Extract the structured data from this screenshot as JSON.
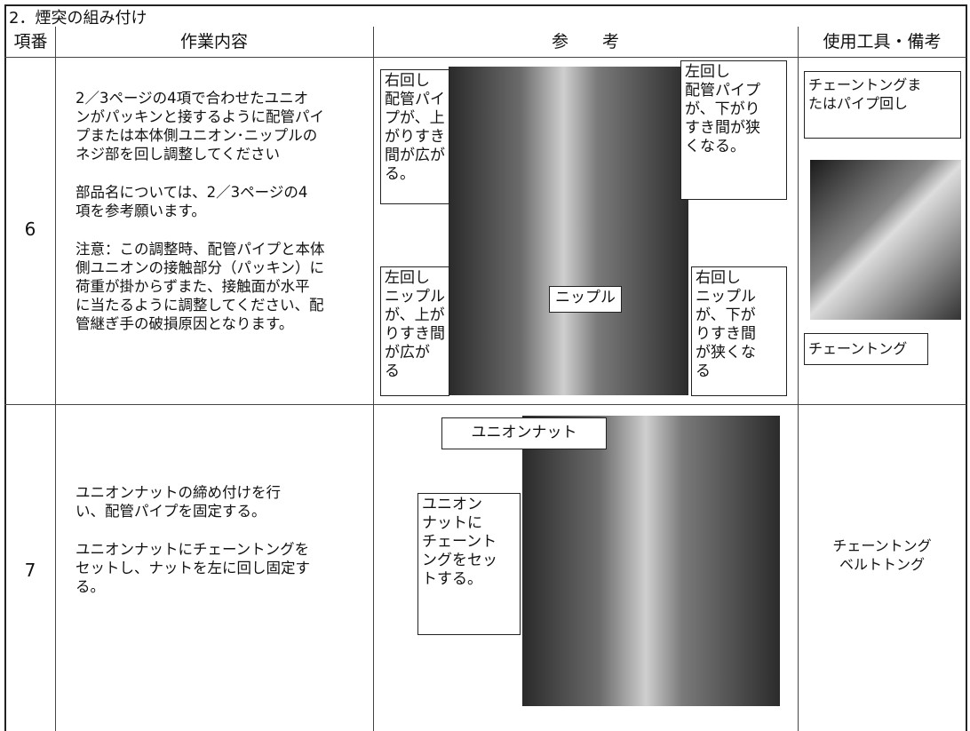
{
  "header": {
    "section": "2．煙突の組み付け"
  },
  "table": {
    "columns": [
      "項番",
      "作業内容",
      "参　　考",
      "使用工具・備考"
    ],
    "rows": [
      {
        "number": "6",
        "content": [
          [
            "2／3ページの4項で合わせたユニオ",
            "ンがパッキンと接するように配管パイ",
            "プまたは本体側ユニオン･ニップルの",
            "ネジ部を回し調整してください"
          ],
          [
            "部品名については、2／3ページの4",
            "項を参考願います。"
          ],
          [
            "注意：この調整時、配管パイプと本体",
            "側ユニオンの接触部分（パッキン）に",
            "荷重が掛からずまた、接触面が水平",
            "に当たるように調整してください、配",
            "管継ぎ手の破損原因となります。"
          ]
        ],
        "callouts": [
          [
            "右回し",
            "配管パイ",
            "プが、上",
            "がりすき",
            "間が広が",
            "る。"
          ],
          [
            "左回し",
            "配管パイプ",
            "が、下がり",
            "すき間が狭",
            "くなる。"
          ],
          [
            "ニップル"
          ],
          [
            "左回し",
            "ニップル",
            "が、上が",
            "りすき間",
            "が広が",
            "る"
          ],
          [
            "右回し",
            "ニップル",
            "が、下が",
            "りすき間",
            "が狭くな",
            "る"
          ]
        ],
        "tools": [
          [
            "チェーントングま",
            "たはパイプ回し"
          ],
          [
            "チェーントング"
          ]
        ]
      },
      {
        "number": "7",
        "content": [
          [
            "ユニオンナットの締め付けを行",
            "い、配管パイプを固定する。"
          ],
          [
            "ユニオンナットにチェーントングを",
            "セットし、ナットを左に回し固定す",
            "る。"
          ]
        ],
        "callouts": [
          [
            "ユニオンナット"
          ],
          [
            "ユニオン",
            "ナットに",
            "チェーント",
            "ングをセッ",
            "トする。"
          ]
        ],
        "tools": [
          [
            "チェーントング",
            "ベルトトング"
          ]
        ]
      }
    ]
  }
}
